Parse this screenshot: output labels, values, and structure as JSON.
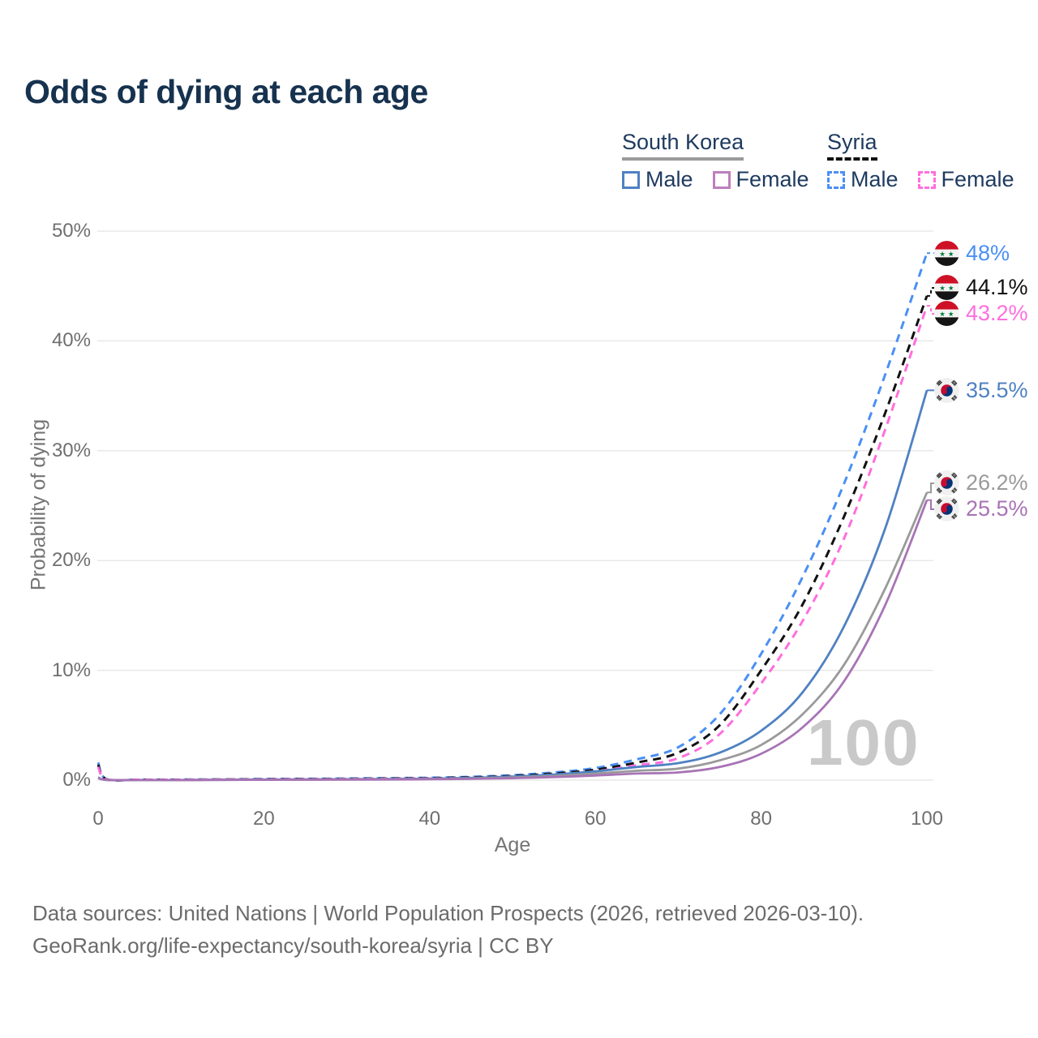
{
  "title": "Odds of dying at each age",
  "legend": {
    "groups": [
      {
        "title": "South Korea",
        "underline_style": "solid",
        "underline_color": "#9a9a9a",
        "items": [
          {
            "label": "Male",
            "color": "#4f81c2",
            "dashed": false
          },
          {
            "label": "Female",
            "color": "#bd7fbd",
            "dashed": false
          }
        ]
      },
      {
        "title": "Syria",
        "underline_style": "dashed",
        "underline_color": "#111111",
        "items": [
          {
            "label": "Male",
            "color": "#4a90f4",
            "dashed": true
          },
          {
            "label": "Female",
            "color": "#ff6ede",
            "dashed": true
          }
        ]
      }
    ]
  },
  "axes": {
    "y_title": "Probability of dying",
    "x_title": "Age",
    "y_ticks": [
      "0%",
      "10%",
      "20%",
      "30%",
      "40%",
      "50%"
    ],
    "x_ticks": [
      "0",
      "20",
      "40",
      "60",
      "80",
      "100"
    ]
  },
  "watermark_age": "100",
  "footer": {
    "line1": "Data sources: United Nations | World Population Prospects (2026, retrieved 2026-03-10).",
    "line2": "GeoRank.org/life-expectancy/south-korea/syria | CC BY"
  },
  "colors": {
    "title_text": "#16324f",
    "legend_text": "#1e3a5f",
    "grid_line": "#e9e9e9",
    "tick_text": "#6f6f6f",
    "watermark": "#c9c9c9",
    "footer_text": "#6b6b6b"
  },
  "chart_data": {
    "type": "line",
    "title": "Odds of dying at each age",
    "xlabel": "Age",
    "ylabel": "Probability of dying",
    "xlim": [
      0,
      100
    ],
    "ylim_percent": [
      0,
      50
    ],
    "grid": "horizontal-only",
    "legend_position": "top-right",
    "x_ages": [
      0,
      1,
      5,
      10,
      15,
      20,
      25,
      30,
      35,
      40,
      45,
      50,
      55,
      60,
      65,
      70,
      75,
      80,
      85,
      90,
      95,
      100
    ],
    "series": [
      {
        "name": "Syria Male",
        "country": "Syria",
        "sex": "male",
        "line_style": "dashed",
        "color": "#4a90f4",
        "flag": "syria",
        "end_label": "48%",
        "end_value_percent": 48.0,
        "values_percent": [
          1.6,
          0.1,
          0.05,
          0.05,
          0.07,
          0.1,
          0.12,
          0.15,
          0.18,
          0.22,
          0.3,
          0.45,
          0.7,
          1.1,
          1.9,
          3.0,
          6.0,
          11.5,
          18.5,
          27.0,
          37.0,
          48.0
        ]
      },
      {
        "name": "Syria Total",
        "country": "Syria",
        "sex": "all",
        "line_style": "dashed",
        "color": "#111111",
        "flag": "syria",
        "end_label": "44.1%",
        "end_value_percent": 44.1,
        "values_percent": [
          1.4,
          0.09,
          0.04,
          0.04,
          0.06,
          0.08,
          0.1,
          0.12,
          0.15,
          0.18,
          0.25,
          0.38,
          0.6,
          0.95,
          1.6,
          2.5,
          5.0,
          10.0,
          16.0,
          24.0,
          33.5,
          44.1
        ]
      },
      {
        "name": "Syria Female",
        "country": "Syria",
        "sex": "female",
        "line_style": "dashed",
        "color": "#ff6ede",
        "flag": "syria",
        "end_label": "43.2%",
        "end_value_percent": 43.2,
        "values_percent": [
          1.2,
          0.08,
          0.04,
          0.03,
          0.05,
          0.06,
          0.08,
          0.1,
          0.12,
          0.15,
          0.2,
          0.32,
          0.5,
          0.8,
          1.35,
          2.0,
          4.2,
          8.8,
          14.5,
          22.0,
          32.0,
          43.2
        ]
      },
      {
        "name": "South Korea Male",
        "country": "South Korea",
        "sex": "male",
        "line_style": "solid",
        "color": "#4f81c2",
        "flag": "south-korea",
        "end_label": "35.5%",
        "end_value_percent": 35.5,
        "values_percent": [
          0.25,
          0.02,
          0.01,
          0.01,
          0.03,
          0.05,
          0.06,
          0.08,
          0.1,
          0.13,
          0.2,
          0.32,
          0.5,
          0.8,
          1.2,
          1.55,
          2.5,
          4.5,
          8.0,
          14.0,
          23.0,
          35.5
        ]
      },
      {
        "name": "South Korea Total",
        "country": "South Korea",
        "sex": "all",
        "line_style": "solid",
        "color": "#9a9a9a",
        "flag": "south-korea",
        "end_label": "26.2%",
        "end_value_percent": 26.2,
        "values_percent": [
          0.22,
          0.02,
          0.01,
          0.01,
          0.02,
          0.04,
          0.05,
          0.06,
          0.08,
          0.1,
          0.15,
          0.24,
          0.38,
          0.6,
          0.85,
          1.05,
          1.8,
          3.2,
          6.0,
          10.5,
          17.5,
          26.2
        ]
      },
      {
        "name": "South Korea Female",
        "country": "South Korea",
        "sex": "female",
        "line_style": "solid",
        "color": "#a873b5",
        "flag": "south-korea",
        "end_label": "25.5%",
        "end_value_percent": 25.5,
        "values_percent": [
          0.2,
          0.02,
          0.01,
          0.01,
          0.02,
          0.03,
          0.04,
          0.05,
          0.06,
          0.08,
          0.12,
          0.18,
          0.28,
          0.42,
          0.6,
          0.7,
          1.2,
          2.4,
          4.8,
          9.0,
          16.0,
          25.5
        ]
      }
    ]
  }
}
